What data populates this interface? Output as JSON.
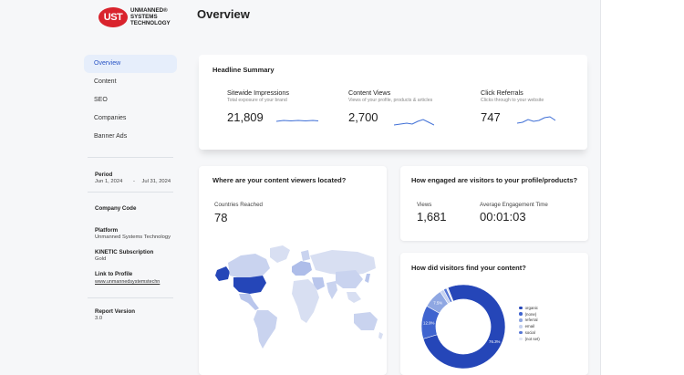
{
  "brand": {
    "mark": "UST",
    "name_line1": "UNMANNED®",
    "name_line2": "SYSTEMS",
    "name_line3": "TECHNOLOGY"
  },
  "page": {
    "title": "Overview"
  },
  "nav": [
    {
      "label": "Overview"
    },
    {
      "label": "Content"
    },
    {
      "label": "SEO"
    },
    {
      "label": "Companies"
    },
    {
      "label": "Banner Ads"
    }
  ],
  "info": {
    "period_label": "Period",
    "period_start": "Jun 1, 2024",
    "period_sep": "-",
    "period_end": "Jul 31, 2024",
    "company_code_label": "Company Code",
    "platform_label": "Platform",
    "platform_value": "Unmanned Systems Technology",
    "subscription_label": "KINETIC Subscription",
    "subscription_value": "Gold",
    "profile_label": "Link to Profile",
    "profile_value": "www.unmannedsystemstechn",
    "report_label": "Report Version",
    "report_value": "3.0"
  },
  "headline": {
    "title": "Headline Summary",
    "metrics": [
      {
        "title": "Sitewide Impressions",
        "sub": "Total exposure of your brand",
        "value": "21,809"
      },
      {
        "title": "Content Views",
        "sub": "Views of your profile, products & articles",
        "value": "2,700"
      },
      {
        "title": "Click Referrals",
        "sub": "Clicks through to your website",
        "value": "747"
      }
    ]
  },
  "location": {
    "title": "Where are your content viewers located?",
    "countries_label": "Countries Reached",
    "countries_value": "78"
  },
  "engagement": {
    "title": "How engaged are visitors to your profile/products?",
    "views_label": "Views",
    "views_value": "1,681",
    "time_label": "Average Engagement Time",
    "time_value": "00:01:03"
  },
  "sources": {
    "title": "How did visitors find your content?"
  },
  "chart_data": {
    "type": "pie",
    "categories": [
      "organic",
      "(none)",
      "referral",
      "email",
      "social",
      "(not set)"
    ],
    "values": [
      76.3,
      12.9,
      7.5,
      1.5,
      1.2,
      0.6
    ],
    "slice_labels": [
      "76.3%",
      "12.9%",
      "7.5%",
      "",
      "",
      ""
    ],
    "colors": [
      "#2546b8",
      "#3f64cf",
      "#8fa7e2",
      "#c6d2f0",
      "#5576d6",
      "#e2e7f4"
    ],
    "donut": true,
    "legend": "right"
  },
  "colors": {
    "accent": "#2a55c5",
    "brand_red": "#d9232d",
    "sparkline": "#3f6fd6"
  }
}
